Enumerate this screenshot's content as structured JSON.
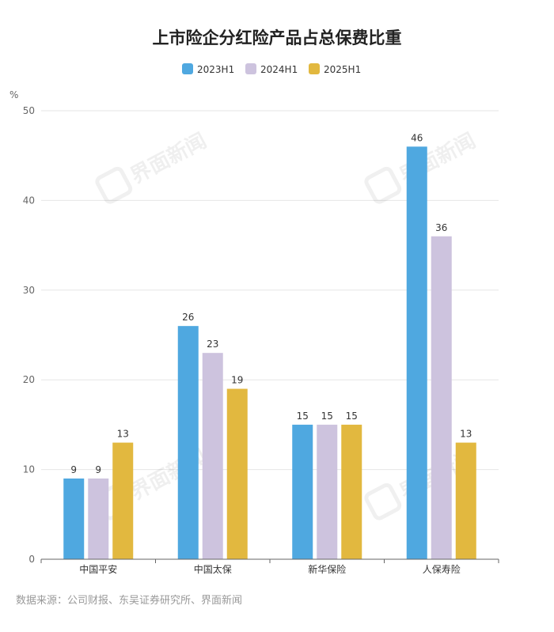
{
  "chart_data": {
    "type": "bar",
    "title": "上市险企分红险产品占总保费比重",
    "ylabel": "%",
    "xlabel": "",
    "categories": [
      "中国平安",
      "中国太保",
      "新华保险",
      "人保寿险"
    ],
    "series": [
      {
        "name": "2023H1",
        "color": "#4fa8e0",
        "values": [
          9,
          26,
          15,
          46
        ]
      },
      {
        "name": "2024H1",
        "color": "#cdc3de",
        "values": [
          9,
          23,
          15,
          36
        ]
      },
      {
        "name": "2025H1",
        "color": "#e2b83f",
        "values": [
          13,
          19,
          15,
          13
        ]
      }
    ],
    "ylim": [
      0,
      50
    ],
    "yticks": [
      0,
      10,
      20,
      30,
      40,
      50
    ],
    "grid": true,
    "legend_position": "top-center",
    "data_labels": true
  },
  "source": "数据来源：公司财报、东吴证券研究所、界面新闻",
  "watermark": "界面新闻"
}
